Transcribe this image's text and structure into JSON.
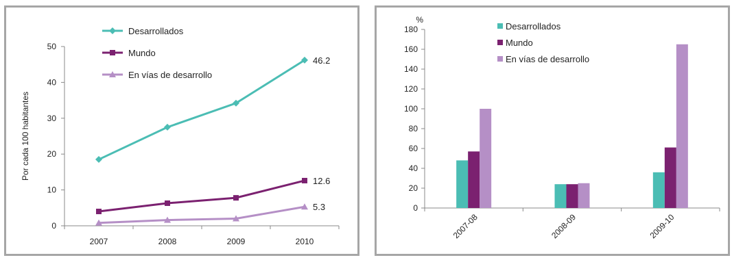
{
  "chart_data": [
    {
      "type": "line",
      "ylabel": "Por cada 100 habitantes",
      "x": [
        "2007",
        "2008",
        "2009",
        "2010"
      ],
      "ylim": [
        0,
        50
      ],
      "yticks": [
        "0",
        "10",
        "20",
        "30",
        "40",
        "50"
      ],
      "grid": false,
      "legend_position": "top",
      "series": [
        {
          "name": "Desarrollados",
          "values": [
            18.5,
            27.5,
            34.2,
            46.2
          ],
          "color": "#4bbdb4",
          "marker": "diamond",
          "end_label": "46.2"
        },
        {
          "name": "Mundo",
          "values": [
            4.0,
            6.3,
            7.8,
            12.6
          ],
          "color": "#7b2170",
          "marker": "square",
          "end_label": "12.6"
        },
        {
          "name": "En vías de desarrollo",
          "values": [
            0.8,
            1.6,
            2.0,
            5.3
          ],
          "color": "#b58fc6",
          "marker": "triangle",
          "end_label": "5.3"
        }
      ]
    },
    {
      "type": "bar",
      "ylabel": "%",
      "categories": [
        "2007-08",
        "2008-09",
        "2009-10"
      ],
      "ylim": [
        0,
        180
      ],
      "yticks": [
        "0",
        "20",
        "40",
        "60",
        "80",
        "100",
        "120",
        "140",
        "160",
        "180"
      ],
      "grid": false,
      "legend_position": "top",
      "series": [
        {
          "name": "Desarrollados",
          "values": [
            48,
            24,
            36
          ],
          "color": "#4bbdb4"
        },
        {
          "name": "Mundo",
          "values": [
            57,
            24,
            61
          ],
          "color": "#7b2170"
        },
        {
          "name": "En vías de desarrollo",
          "values": [
            100,
            25,
            165
          ],
          "color": "#b58fc6"
        }
      ]
    }
  ]
}
